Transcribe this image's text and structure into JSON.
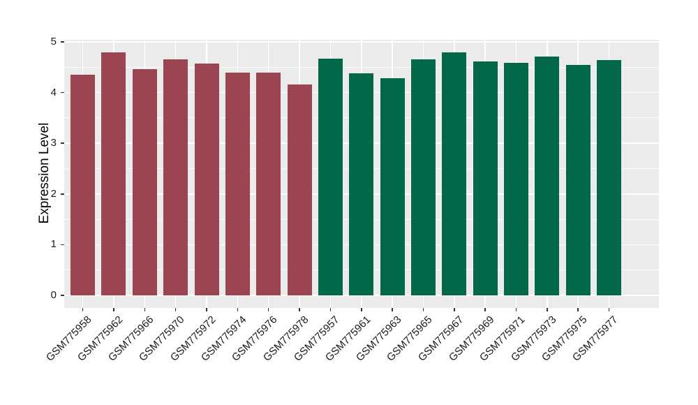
{
  "chart_data": {
    "type": "bar",
    "ylabel": "Expression Level",
    "ylim": [
      0,
      5
    ],
    "yticks": [
      0,
      1,
      2,
      3,
      4,
      5
    ],
    "legend_position": "none",
    "grid": "white major and minor horizontal gridlines, white vertical gridlines at each category, on grey panel",
    "categories": [
      "GSM775958",
      "GSM775962",
      "GSM775966",
      "GSM775970",
      "GSM775972",
      "GSM775974",
      "GSM775976",
      "GSM775978",
      "GSM775957",
      "GSM775961",
      "GSM775963",
      "GSM775965",
      "GSM775967",
      "GSM775969",
      "GSM775971",
      "GSM775973",
      "GSM775975",
      "GSM775977"
    ],
    "values": [
      4.35,
      4.79,
      4.46,
      4.66,
      4.57,
      4.39,
      4.39,
      4.16,
      4.67,
      4.38,
      4.28,
      4.65,
      4.8,
      4.62,
      4.59,
      4.71,
      4.55,
      4.64
    ],
    "groups": [
      "group1",
      "group1",
      "group1",
      "group1",
      "group1",
      "group1",
      "group1",
      "group1",
      "group2",
      "group2",
      "group2",
      "group2",
      "group2",
      "group2",
      "group2",
      "group2",
      "group2",
      "group2"
    ],
    "group_colors": {
      "group1": "#9B4452",
      "group2": "#03684A"
    },
    "style": {
      "panel_bg": "#EBEBEB",
      "grid_major": "#FFFFFF",
      "grid_minor": "rgba(255,255,255,0.8)",
      "tick_mark_color": "#333333",
      "axis_text_color": "#1A1A1A"
    }
  }
}
